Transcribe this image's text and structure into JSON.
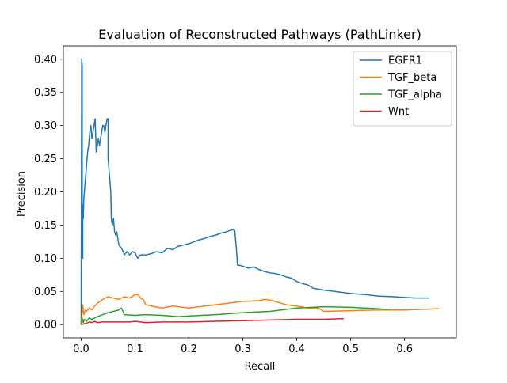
{
  "chart_data": {
    "type": "line",
    "title": "Evaluation of Reconstructed Pathways (PathLinker)",
    "xlabel": "Recall",
    "ylabel": "Precision",
    "xlim": [
      -0.033,
      0.696
    ],
    "ylim": [
      -0.02,
      0.42
    ],
    "xticks": [
      0.0,
      0.1,
      0.2,
      0.3,
      0.4,
      0.5,
      0.6
    ],
    "xtick_labels": [
      "0.0",
      "0.1",
      "0.2",
      "0.3",
      "0.4",
      "0.5",
      "0.6"
    ],
    "yticks": [
      0.0,
      0.05,
      0.1,
      0.15,
      0.2,
      0.25,
      0.3,
      0.35,
      0.4
    ],
    "ytick_labels": [
      "0.00",
      "0.05",
      "0.10",
      "0.15",
      "0.20",
      "0.25",
      "0.30",
      "0.35",
      "0.40"
    ],
    "grid": false,
    "legend": "top-right",
    "series": [
      {
        "name": "EGFR1",
        "color": "#1f77b4",
        "x": [
          0.0,
          0.001,
          0.002,
          0.002,
          0.003,
          0.003,
          0.004,
          0.005,
          0.006,
          0.008,
          0.01,
          0.012,
          0.014,
          0.016,
          0.018,
          0.02,
          0.022,
          0.024,
          0.026,
          0.028,
          0.03,
          0.032,
          0.034,
          0.036,
          0.038,
          0.04,
          0.042,
          0.044,
          0.046,
          0.048,
          0.05,
          0.05,
          0.052,
          0.055,
          0.056,
          0.058,
          0.06,
          0.062,
          0.064,
          0.066,
          0.07,
          0.075,
          0.078,
          0.08,
          0.085,
          0.09,
          0.095,
          0.1,
          0.105,
          0.11,
          0.12,
          0.13,
          0.14,
          0.15,
          0.16,
          0.17,
          0.18,
          0.19,
          0.2,
          0.21,
          0.22,
          0.23,
          0.24,
          0.25,
          0.26,
          0.27,
          0.28,
          0.285,
          0.288,
          0.29,
          0.3,
          0.31,
          0.32,
          0.33,
          0.34,
          0.35,
          0.36,
          0.37,
          0.38,
          0.39,
          0.4,
          0.41,
          0.42,
          0.43,
          0.45,
          0.47,
          0.5,
          0.53,
          0.55,
          0.58,
          0.6,
          0.62,
          0.64,
          0.645
        ],
        "y": [
          0.0,
          0.4,
          0.39,
          0.12,
          0.1,
          0.18,
          0.16,
          0.19,
          0.2,
          0.22,
          0.24,
          0.26,
          0.27,
          0.29,
          0.3,
          0.28,
          0.29,
          0.3,
          0.31,
          0.26,
          0.27,
          0.28,
          0.27,
          0.28,
          0.29,
          0.3,
          0.3,
          0.29,
          0.3,
          0.31,
          0.31,
          0.25,
          0.23,
          0.2,
          0.16,
          0.15,
          0.16,
          0.14,
          0.135,
          0.14,
          0.12,
          0.115,
          0.11,
          0.105,
          0.11,
          0.105,
          0.11,
          0.108,
          0.1,
          0.105,
          0.105,
          0.107,
          0.11,
          0.108,
          0.115,
          0.113,
          0.118,
          0.12,
          0.122,
          0.125,
          0.128,
          0.13,
          0.133,
          0.135,
          0.138,
          0.14,
          0.143,
          0.142,
          0.115,
          0.09,
          0.088,
          0.085,
          0.087,
          0.083,
          0.08,
          0.078,
          0.077,
          0.075,
          0.072,
          0.07,
          0.065,
          0.062,
          0.06,
          0.055,
          0.052,
          0.05,
          0.047,
          0.045,
          0.043,
          0.042,
          0.041,
          0.04,
          0.04,
          0.04
        ]
      },
      {
        "name": "TGF_beta",
        "color": "#ff7f0e",
        "x": [
          0.0,
          0.003,
          0.005,
          0.008,
          0.01,
          0.015,
          0.02,
          0.025,
          0.03,
          0.035,
          0.04,
          0.045,
          0.05,
          0.06,
          0.07,
          0.08,
          0.09,
          0.1,
          0.105,
          0.11,
          0.115,
          0.12,
          0.13,
          0.15,
          0.17,
          0.2,
          0.25,
          0.3,
          0.33,
          0.34,
          0.35,
          0.36,
          0.38,
          0.4,
          0.42,
          0.44,
          0.45,
          0.5,
          0.55,
          0.6,
          0.663
        ],
        "y": [
          0.0,
          0.03,
          0.015,
          0.022,
          0.02,
          0.025,
          0.022,
          0.028,
          0.032,
          0.035,
          0.038,
          0.04,
          0.042,
          0.04,
          0.038,
          0.042,
          0.04,
          0.045,
          0.046,
          0.04,
          0.038,
          0.03,
          0.028,
          0.025,
          0.028,
          0.025,
          0.03,
          0.035,
          0.036,
          0.038,
          0.037,
          0.035,
          0.03,
          0.028,
          0.025,
          0.025,
          0.02,
          0.021,
          0.022,
          0.022,
          0.024
        ]
      },
      {
        "name": "TGF_alpha",
        "color": "#2ca02c",
        "x": [
          0.0,
          0.002,
          0.004,
          0.006,
          0.01,
          0.015,
          0.02,
          0.03,
          0.04,
          0.05,
          0.06,
          0.07,
          0.075,
          0.08,
          0.1,
          0.12,
          0.15,
          0.18,
          0.2,
          0.25,
          0.3,
          0.35,
          0.4,
          0.45,
          0.5,
          0.55,
          0.57
        ],
        "y": [
          0.0,
          0.01,
          0.003,
          0.008,
          0.005,
          0.01,
          0.008,
          0.012,
          0.015,
          0.018,
          0.02,
          0.022,
          0.025,
          0.015,
          0.014,
          0.015,
          0.014,
          0.012,
          0.013,
          0.015,
          0.018,
          0.02,
          0.025,
          0.027,
          0.026,
          0.024,
          0.023
        ]
      },
      {
        "name": "Wnt",
        "color": "#d62728",
        "x": [
          0.0,
          0.005,
          0.01,
          0.015,
          0.02,
          0.025,
          0.03,
          0.04,
          0.05,
          0.07,
          0.09,
          0.1,
          0.12,
          0.15,
          0.2,
          0.25,
          0.3,
          0.35,
          0.4,
          0.45,
          0.487
        ],
        "y": [
          0.0,
          0.001,
          0.002,
          0.004,
          0.003,
          0.005,
          0.003,
          0.004,
          0.004,
          0.004,
          0.004,
          0.005,
          0.003,
          0.004,
          0.004,
          0.005,
          0.006,
          0.007,
          0.008,
          0.008,
          0.009
        ]
      }
    ]
  }
}
